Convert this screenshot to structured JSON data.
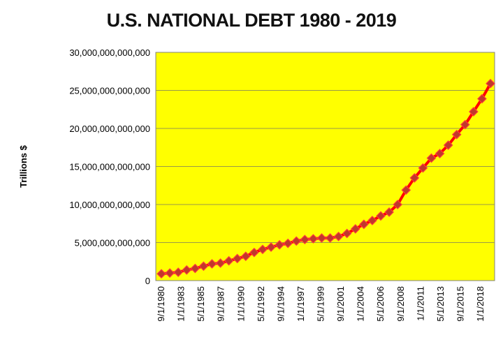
{
  "chart_data": {
    "type": "line",
    "title": "U.S. NATIONAL DEBT 1980 - 2019",
    "xlabel": "",
    "ylabel": "Trillions $",
    "ylim": [
      0,
      30000000000000
    ],
    "y_ticks": [
      "0",
      "5,000,000,000,000",
      "10,000,000,000,000",
      "15,000,000,000,000",
      "20,000,000,000,000",
      "25,000,000,000,000",
      "30,000,000,000,000"
    ],
    "y_tick_values": [
      0,
      5000000000000,
      10000000000000,
      15000000000000,
      20000000000000,
      25000000000000,
      30000000000000
    ],
    "x_tick_labels": [
      "9/1/1980",
      "1/1/1983",
      "5/1/1985",
      "9/1/1987",
      "1/1/1990",
      "5/1/1992",
      "9/1/1994",
      "1/1/1997",
      "5/1/1999",
      "9/1/2001",
      "1/1/2004",
      "5/1/2006",
      "9/1/2008",
      "1/1/2011",
      "5/1/2013",
      "9/1/2015",
      "1/1/2018"
    ],
    "grid": true,
    "legend": "none",
    "plot_background": "#ffff00",
    "line_color": "#ff0000",
    "marker_color": "#c0392b",
    "series": [
      {
        "x": [
          "1980",
          "1981",
          "1982",
          "1983",
          "1984",
          "1985",
          "1986",
          "1987",
          "1988",
          "1989",
          "1990",
          "1991",
          "1992",
          "1993",
          "1994",
          "1995",
          "1996",
          "1997",
          "1998",
          "1999",
          "2000",
          "2001",
          "2002",
          "2003",
          "2004",
          "2005",
          "2006",
          "2007",
          "2008",
          "2009",
          "2010",
          "2011",
          "2012",
          "2013",
          "2014",
          "2015",
          "2016",
          "2017",
          "2018",
          "2019"
        ],
        "values": [
          900000000000,
          1000000000000,
          1100000000000,
          1400000000000,
          1600000000000,
          1900000000000,
          2200000000000,
          2300000000000,
          2600000000000,
          2900000000000,
          3200000000000,
          3700000000000,
          4100000000000,
          4400000000000,
          4700000000000,
          4900000000000,
          5200000000000,
          5400000000000,
          5500000000000,
          5600000000000,
          5600000000000,
          5800000000000,
          6200000000000,
          6800000000000,
          7400000000000,
          7900000000000,
          8500000000000,
          9000000000000,
          10000000000000,
          11900000000000,
          13500000000000,
          14800000000000,
          16100000000000,
          16700000000000,
          17800000000000,
          19200000000000,
          20500000000000,
          22200000000000,
          23900000000000,
          25900000000000
        ]
      }
    ]
  }
}
